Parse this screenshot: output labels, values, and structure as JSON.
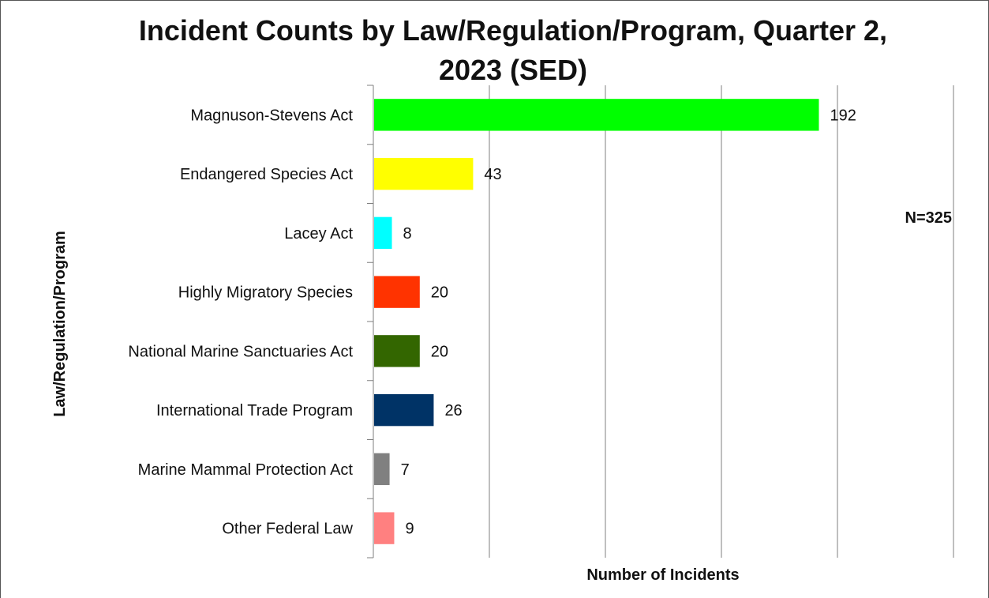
{
  "chart_data": {
    "type": "bar",
    "orientation": "horizontal",
    "title": "Incident Counts by Law/Regulation/Program, Quarter 2, 2023 (SED)",
    "xlabel": "Number of Incidents",
    "ylabel": "Law/Regulation/Program",
    "annotation": "N=325",
    "xlim": [
      0,
      250
    ],
    "grid": true,
    "categories": [
      "Magnuson-Stevens Act",
      "Endangered Species Act",
      "Lacey Act",
      "Highly Migratory Species",
      "National Marine Sanctuaries Act",
      "International Trade Program",
      "Marine Mammal Protection Act",
      "Other Federal Law"
    ],
    "values": [
      192,
      43,
      8,
      20,
      20,
      26,
      7,
      9
    ],
    "colors": [
      "#00ff00",
      "#ffff00",
      "#00ffff",
      "#ff3300",
      "#336600",
      "#003366",
      "#808080",
      "#ff8080"
    ]
  }
}
